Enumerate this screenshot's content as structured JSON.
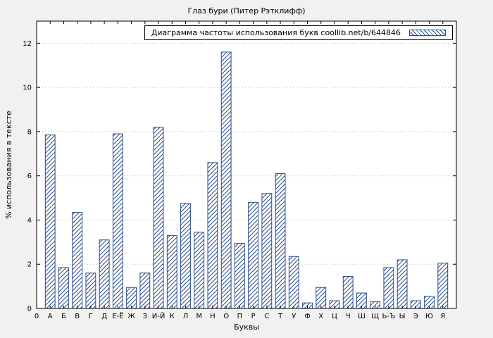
{
  "colors": {
    "bg": "#f1f1f1",
    "plot_bg": "#ffffff",
    "bar": "#2b4d8c",
    "grid": "#b8b8b8",
    "axis": "#000000",
    "text": "#000000"
  },
  "chart_data": {
    "type": "bar",
    "title": "Глаз бури (Питер Рэтклифф)",
    "legend": "Диаграмма частоты использования букв coollib.net/b/644846",
    "legend_position": "top-right",
    "xlabel": "Буквы",
    "ylabel": "% использования в тексте",
    "origin_label": "0",
    "categories": [
      "А",
      "Б",
      "В",
      "Г",
      "Д",
      "Е-Ё",
      "Ж",
      "З",
      "И-Й",
      "К",
      "Л",
      "М",
      "Н",
      "О",
      "П",
      "Р",
      "С",
      "Т",
      "У",
      "Ф",
      "Х",
      "Ц",
      "Ч",
      "Ш",
      "Щ",
      "Ь-Ъ",
      "Ы",
      "Э",
      "Ю",
      "Я"
    ],
    "values": [
      7.85,
      1.85,
      4.35,
      1.6,
      3.1,
      7.9,
      0.95,
      1.6,
      8.2,
      3.3,
      4.75,
      3.45,
      6.6,
      11.6,
      2.95,
      4.8,
      5.2,
      6.1,
      2.35,
      0.25,
      0.95,
      0.35,
      1.45,
      0.7,
      0.3,
      1.85,
      2.2,
      0.35,
      0.55,
      2.05
    ],
    "ylim": [
      0,
      13
    ],
    "yticks": [
      0,
      2,
      4,
      6,
      8,
      10,
      12
    ],
    "grid": "horizontal-dotted",
    "bar_style": "hatched"
  }
}
